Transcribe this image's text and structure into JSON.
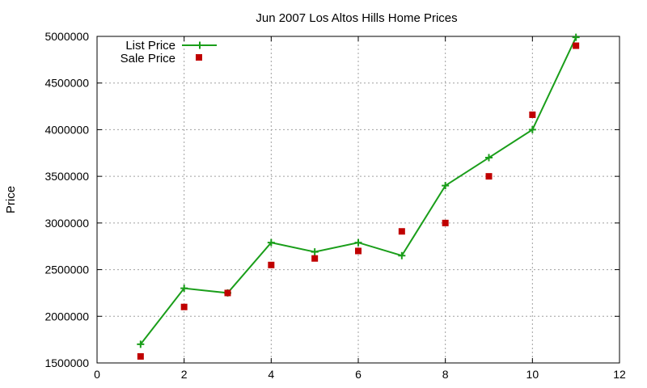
{
  "chart_data": {
    "type": "line",
    "title": "Jun 2007 Los Altos Hills Home Prices",
    "xlabel": "",
    "ylabel": "Price",
    "xlim": [
      0,
      12
    ],
    "ylim": [
      1500000,
      5000000
    ],
    "x_ticks": [
      0,
      2,
      4,
      6,
      8,
      10,
      12
    ],
    "y_ticks": [
      1500000,
      2000000,
      2500000,
      3000000,
      3500000,
      4000000,
      4500000,
      5000000
    ],
    "grid": true,
    "legend_position": "top-left",
    "series": [
      {
        "name": "List Price",
        "style": "line+cross",
        "color": "#1a9e1a",
        "x": [
          1,
          2,
          3,
          4,
          5,
          6,
          7,
          8,
          9,
          10,
          11
        ],
        "y": [
          1700000,
          2300000,
          2250000,
          2790000,
          2690000,
          2790000,
          2650000,
          3400000,
          3700000,
          4000000,
          4990000
        ]
      },
      {
        "name": "Sale Price",
        "style": "square-marker",
        "color": "#c00000",
        "x": [
          1,
          2,
          3,
          4,
          5,
          6,
          7,
          8,
          9,
          10,
          11
        ],
        "y": [
          1570000,
          2100000,
          2250000,
          2550000,
          2620000,
          2700000,
          2910000,
          3000000,
          3500000,
          4160000,
          4900000
        ]
      }
    ]
  }
}
